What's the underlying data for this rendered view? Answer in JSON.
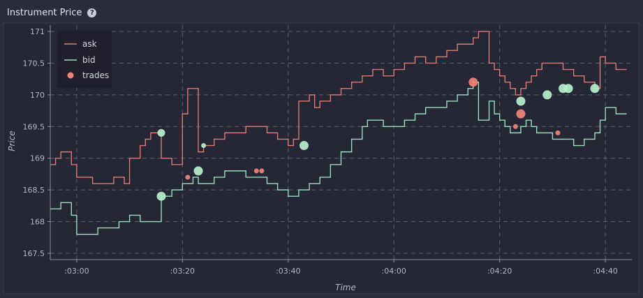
{
  "panel": {
    "title": "Instrument Price",
    "help_icon": "question-circle-icon"
  },
  "chart_data": {
    "type": "line",
    "title": "",
    "xlabel": "Time",
    "ylabel": "Price",
    "xlim_seconds": [
      -5,
      105
    ],
    "ylim": [
      167.4,
      171.1
    ],
    "x_ticks": [
      {
        "t": 0,
        "label": ":03:00"
      },
      {
        "t": 20,
        "label": ":03:20"
      },
      {
        "t": 40,
        "label": ":03:40"
      },
      {
        "t": 60,
        "label": ":04:00"
      },
      {
        "t": 80,
        "label": ":04:20"
      },
      {
        "t": 100,
        "label": ":04:40"
      }
    ],
    "y_ticks": [
      167.5,
      168,
      168.5,
      169,
      169.5,
      170,
      170.5,
      171
    ],
    "grid": true,
    "legend": {
      "placement": "top-left",
      "entries": [
        "ask",
        "bid",
        "trades"
      ]
    },
    "colors": {
      "ask": "#e07a70",
      "bid": "#9be0bc",
      "trade_sell": "#f1837a",
      "trade_buy": "#b5f0cc"
    },
    "series": [
      {
        "name": "ask",
        "x": [
          -5,
          -4,
          -3,
          -1,
          0,
          2,
          3,
          5,
          7,
          9,
          10,
          12,
          13,
          14,
          15,
          16,
          18,
          19,
          20,
          21,
          22,
          23,
          24,
          26,
          28,
          30,
          32,
          34,
          36,
          38,
          40,
          41,
          42,
          43,
          44,
          45,
          46,
          48,
          50,
          52,
          54,
          56,
          58,
          60,
          62,
          64,
          66,
          68,
          70,
          72,
          74,
          75,
          76,
          78,
          79,
          80,
          81,
          82,
          83,
          84,
          85,
          86,
          87,
          88,
          90,
          92,
          94,
          96,
          98,
          99,
          100,
          102,
          103
        ],
        "y": [
          168.9,
          169,
          169.1,
          168.9,
          168.7,
          168.7,
          168.6,
          168.6,
          168.7,
          168.6,
          169,
          169.2,
          169.3,
          169.4,
          169.4,
          169,
          168.9,
          168.9,
          169.7,
          170.1,
          170.1,
          169.1,
          169.2,
          169.3,
          169.4,
          169.4,
          169.5,
          169.5,
          169.4,
          169.3,
          169.2,
          169.3,
          169.9,
          169.9,
          170,
          169.8,
          169.9,
          170,
          170.1,
          170.2,
          170.3,
          170.4,
          170.3,
          170.4,
          170.5,
          170.6,
          170.5,
          170.6,
          170.7,
          170.8,
          170.8,
          170.9,
          171,
          170.5,
          170.4,
          170.3,
          170.2,
          170.1,
          170,
          170.1,
          170.2,
          170.3,
          170.4,
          170.5,
          170.5,
          170.4,
          170.3,
          170.2,
          170.1,
          170.6,
          170.5,
          170.4,
          170.4
        ]
      },
      {
        "name": "bid",
        "x": [
          -5,
          -3,
          -1,
          0,
          2,
          4,
          6,
          8,
          9,
          10,
          12,
          13,
          14,
          15,
          16,
          18,
          19,
          20,
          21,
          22,
          23,
          24,
          26,
          28,
          30,
          32,
          34,
          36,
          38,
          40,
          42,
          44,
          46,
          48,
          50,
          52,
          54,
          55,
          56,
          58,
          60,
          62,
          64,
          66,
          68,
          70,
          72,
          74,
          75,
          76,
          78,
          79,
          80,
          81,
          82,
          83,
          84,
          85,
          86,
          87,
          88,
          90,
          92,
          94,
          96,
          98,
          99,
          100,
          102,
          103
        ],
        "y": [
          168.2,
          168.3,
          168.1,
          167.8,
          167.8,
          167.9,
          167.9,
          168,
          168,
          168.1,
          168,
          168,
          168,
          168,
          168.4,
          168.5,
          168.5,
          168.6,
          168.6,
          168.7,
          168.6,
          168.6,
          168.7,
          168.8,
          168.8,
          168.7,
          168.7,
          168.6,
          168.5,
          168.4,
          168.5,
          168.6,
          168.7,
          168.9,
          169.1,
          169.3,
          169.5,
          169.6,
          169.6,
          169.5,
          169.5,
          169.6,
          169.7,
          169.8,
          169.8,
          169.9,
          170,
          170.1,
          170.2,
          169.6,
          169.9,
          169.7,
          169.6,
          169.5,
          169.4,
          169.4,
          169.5,
          169.6,
          169.5,
          169.4,
          169.4,
          169.3,
          169.3,
          169.2,
          169.3,
          169.4,
          169.6,
          169.8,
          169.7,
          169.7
        ]
      }
    ],
    "trades": [
      {
        "x": 16,
        "y": 168.4,
        "side": "buy",
        "size": "large"
      },
      {
        "x": 16,
        "y": 169.4,
        "side": "buy",
        "size": "medium"
      },
      {
        "x": 21,
        "y": 168.7,
        "side": "sell",
        "size": "small"
      },
      {
        "x": 23,
        "y": 168.8,
        "side": "buy",
        "size": "large"
      },
      {
        "x": 24,
        "y": 169.2,
        "side": "buy",
        "size": "small"
      },
      {
        "x": 34,
        "y": 168.8,
        "side": "sell",
        "size": "small"
      },
      {
        "x": 35,
        "y": 168.8,
        "side": "sell",
        "size": "small"
      },
      {
        "x": 43,
        "y": 169.2,
        "side": "buy",
        "size": "large"
      },
      {
        "x": 75,
        "y": 170.2,
        "side": "sell",
        "size": "large"
      },
      {
        "x": 83,
        "y": 169.5,
        "side": "sell",
        "size": "small"
      },
      {
        "x": 84,
        "y": 169.7,
        "side": "sell",
        "size": "large"
      },
      {
        "x": 84,
        "y": 169.9,
        "side": "buy",
        "size": "large"
      },
      {
        "x": 89,
        "y": 170,
        "side": "buy",
        "size": "large"
      },
      {
        "x": 91,
        "y": 169.4,
        "side": "sell",
        "size": "small"
      },
      {
        "x": 92,
        "y": 170.1,
        "side": "buy",
        "size": "large"
      },
      {
        "x": 93,
        "y": 170.1,
        "side": "buy",
        "size": "large"
      },
      {
        "x": 98,
        "y": 170.1,
        "side": "buy",
        "size": "large"
      }
    ]
  }
}
